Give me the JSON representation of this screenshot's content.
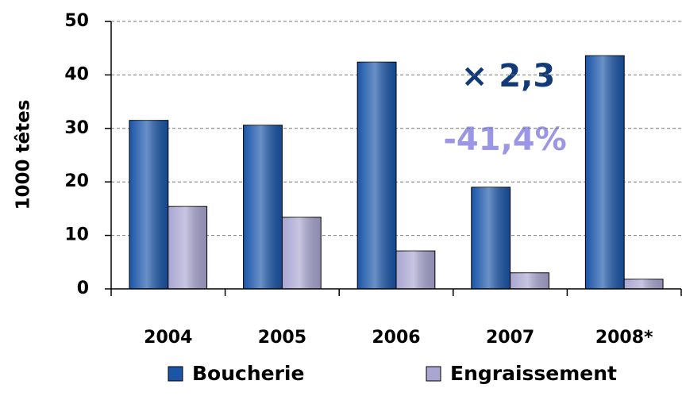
{
  "chart_data": {
    "type": "bar",
    "y_label": "1000 têtes",
    "categories": [
      "2004",
      "2005",
      "2006",
      "2007",
      "2008*"
    ],
    "series": [
      {
        "name": "Boucherie",
        "color": "#1a55a8",
        "values": [
          31.5,
          30.6,
          42.4,
          19.0,
          43.6
        ]
      },
      {
        "name": "Engraissement",
        "color": "#a9a6d2",
        "values": [
          15.4,
          13.4,
          7.1,
          3.0,
          1.8
        ]
      }
    ],
    "annotations": [
      {
        "text": "× 2,3",
        "color": "#123a7a"
      },
      {
        "text": "-41,4%",
        "color": "#9b97e6"
      }
    ],
    "ylim": [
      0,
      50
    ],
    "yticks": [
      0,
      10,
      20,
      30,
      40,
      50
    ],
    "grid": true,
    "legend": "bottom"
  }
}
